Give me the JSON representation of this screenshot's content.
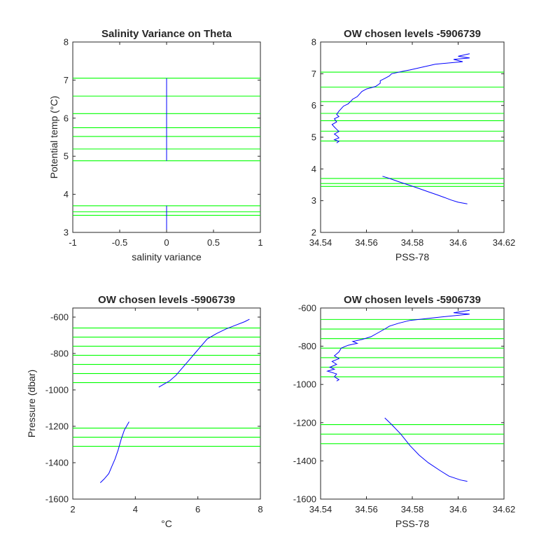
{
  "chart_data": [
    {
      "type": "line",
      "title": "Salinity Variance on Theta",
      "xlabel": "salinity variance",
      "ylabel": "Potential temp (°C)",
      "xlim": [
        -1,
        1
      ],
      "ylim": [
        3,
        8
      ],
      "xticks": [
        "-1",
        "-0.5",
        "0",
        "0.5",
        "1"
      ],
      "yticks": [
        "3",
        "4",
        "5",
        "6",
        "7",
        "8"
      ],
      "chosen_levels": [
        7.05,
        6.58,
        6.12,
        5.75,
        5.52,
        5.19,
        4.88,
        3.7,
        3.54,
        3.45
      ],
      "series": [
        {
          "segments": [
            [
              [
                0,
                7.05
              ],
              [
                0,
                4.88
              ]
            ],
            [
              [
                0,
                3.7
              ],
              [
                0,
                3.0
              ]
            ]
          ]
        }
      ]
    },
    {
      "type": "line",
      "title": "OW chosen levels -5906739",
      "xlabel": "PSS-78",
      "ylabel": "",
      "xlim": [
        34.54,
        34.62
      ],
      "ylim": [
        2,
        8
      ],
      "xticks": [
        "34.54",
        "34.56",
        "34.58",
        "34.6",
        "34.62"
      ],
      "yticks": [
        "2",
        "3",
        "4",
        "5",
        "6",
        "7",
        "8"
      ],
      "chosen_levels": [
        7.05,
        6.58,
        6.12,
        5.75,
        5.52,
        5.19,
        4.88,
        3.7,
        3.54,
        3.45
      ],
      "series": [
        {
          "segments": [
            [
              [
                34.605,
                7.63
              ],
              [
                34.6,
                7.55
              ],
              [
                34.605,
                7.5
              ],
              [
                34.598,
                7.45
              ],
              [
                34.602,
                7.38
              ],
              [
                34.59,
                7.3
              ],
              [
                34.579,
                7.12
              ],
              [
                34.576,
                7.08
              ],
              [
                34.571,
                7.0
              ],
              [
                34.57,
                6.93
              ],
              [
                34.568,
                6.85
              ],
              [
                34.566,
                6.78
              ],
              [
                34.566,
                6.7
              ],
              [
                34.564,
                6.6
              ],
              [
                34.56,
                6.52
              ],
              [
                34.558,
                6.44
              ],
              [
                34.557,
                6.36
              ],
              [
                34.556,
                6.28
              ],
              [
                34.554,
                6.2
              ],
              [
                34.553,
                6.12
              ],
              [
                34.552,
                6.05
              ],
              [
                34.55,
                5.98
              ],
              [
                34.549,
                5.9
              ],
              [
                34.548,
                5.82
              ],
              [
                34.547,
                5.72
              ],
              [
                34.548,
                5.65
              ],
              [
                34.546,
                5.58
              ],
              [
                34.547,
                5.48
              ],
              [
                34.545,
                5.4
              ],
              [
                34.546,
                5.32
              ],
              [
                34.547,
                5.25
              ],
              [
                34.548,
                5.18
              ],
              [
                34.546,
                5.1
              ],
              [
                34.547,
                5.05
              ],
              [
                34.548,
                4.98
              ],
              [
                34.546,
                4.92
              ],
              [
                34.548,
                4.87
              ],
              [
                34.547,
                4.82
              ]
            ],
            [
              [
                34.567,
                3.77
              ],
              [
                34.57,
                3.7
              ],
              [
                34.574,
                3.6
              ],
              [
                34.579,
                3.48
              ],
              [
                34.583,
                3.38
              ],
              [
                34.587,
                3.28
              ],
              [
                34.591,
                3.18
              ],
              [
                34.594,
                3.1
              ],
              [
                34.597,
                3.02
              ],
              [
                34.6,
                2.95
              ],
              [
                34.604,
                2.9
              ]
            ]
          ]
        }
      ]
    },
    {
      "type": "line",
      "title": "OW chosen levels -5906739",
      "xlabel": "°C",
      "ylabel": "Pressure (dbar)",
      "xlim": [
        2,
        8
      ],
      "ylim": [
        -1600,
        -550
      ],
      "xticks": [
        "2",
        "4",
        "6",
        "8"
      ],
      "yticks": [
        "-1600",
        "-1400",
        "-1200",
        "-1000",
        "-800",
        "-600"
      ],
      "chosen_levels": [
        -660,
        -710,
        -760,
        -810,
        -860,
        -910,
        -960,
        -1210,
        -1260,
        -1310
      ],
      "series": [
        {
          "segments": [
            [
              [
                7.65,
                -612
              ],
              [
                7.5,
                -625
              ],
              [
                7.2,
                -645
              ],
              [
                6.9,
                -665
              ],
              [
                6.6,
                -690
              ],
              [
                6.3,
                -720
              ],
              [
                6.1,
                -760
              ],
              [
                5.9,
                -800
              ],
              [
                5.7,
                -840
              ],
              [
                5.5,
                -880
              ],
              [
                5.3,
                -920
              ],
              [
                5.1,
                -950
              ],
              [
                4.9,
                -970
              ],
              [
                4.75,
                -985
              ]
            ],
            [
              [
                3.8,
                -1175
              ],
              [
                3.65,
                -1220
              ],
              [
                3.55,
                -1270
              ],
              [
                3.45,
                -1330
              ],
              [
                3.35,
                -1380
              ],
              [
                3.25,
                -1420
              ],
              [
                3.15,
                -1460
              ],
              [
                3.0,
                -1490
              ],
              [
                2.88,
                -1510
              ]
            ]
          ]
        }
      ]
    },
    {
      "type": "line",
      "title": "OW chosen levels -5906739",
      "xlabel": "PSS-78",
      "ylabel": "",
      "xlim": [
        34.54,
        34.62
      ],
      "ylim": [
        -1600,
        -600
      ],
      "xticks": [
        "34.54",
        "34.56",
        "34.58",
        "34.6",
        "34.62"
      ],
      "yticks": [
        "-1600",
        "-1400",
        "-1200",
        "-1000",
        "-800",
        "-600"
      ],
      "chosen_levels": [
        -660,
        -710,
        -760,
        -810,
        -860,
        -910,
        -960,
        -1210,
        -1260,
        -1310
      ],
      "series": [
        {
          "segments": [
            [
              [
                34.605,
                -612
              ],
              [
                34.598,
                -625
              ],
              [
                34.605,
                -632
              ],
              [
                34.59,
                -650
              ],
              [
                34.579,
                -665
              ],
              [
                34.574,
                -680
              ],
              [
                34.57,
                -695
              ],
              [
                34.568,
                -710
              ],
              [
                34.565,
                -730
              ],
              [
                34.562,
                -750
              ],
              [
                34.558,
                -765
              ],
              [
                34.554,
                -775
              ],
              [
                34.556,
                -785
              ],
              [
                34.552,
                -795
              ],
              [
                34.549,
                -810
              ],
              [
                34.548,
                -830
              ],
              [
                34.546,
                -850
              ],
              [
                34.548,
                -865
              ],
              [
                34.545,
                -880
              ],
              [
                34.547,
                -895
              ],
              [
                34.544,
                -910
              ],
              [
                34.546,
                -920
              ],
              [
                34.543,
                -930
              ],
              [
                34.547,
                -945
              ],
              [
                34.546,
                -960
              ],
              [
                34.548,
                -975
              ],
              [
                34.547,
                -982
              ]
            ],
            [
              [
                34.568,
                -1175
              ],
              [
                34.571,
                -1210
              ],
              [
                34.575,
                -1260
              ],
              [
                34.579,
                -1320
              ],
              [
                34.583,
                -1370
              ],
              [
                34.587,
                -1410
              ],
              [
                34.592,
                -1450
              ],
              [
                34.596,
                -1480
              ],
              [
                34.601,
                -1500
              ],
              [
                34.604,
                -1507
              ]
            ]
          ]
        }
      ]
    }
  ]
}
